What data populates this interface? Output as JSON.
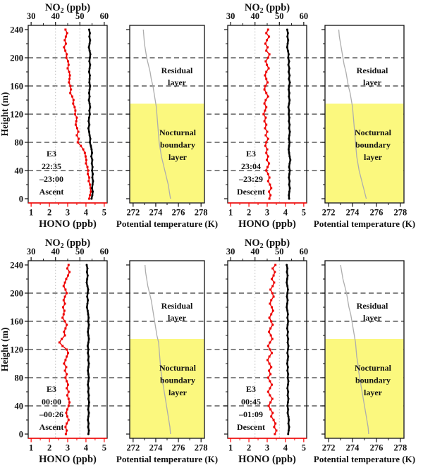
{
  "figure": {
    "description": "Vertical profiles of HONO and NO2 with potential temperature panels for flight E3"
  },
  "chart_data": {
    "type": "line",
    "height_axis": {
      "label": "Height (m)",
      "range": [
        0,
        240
      ],
      "ticks": [
        0,
        40,
        80,
        120,
        160,
        200,
        240
      ],
      "minor_step": 20,
      "dashed_gridlines": [
        40,
        80,
        120,
        160,
        200
      ]
    },
    "no2_axis": {
      "label_main": "NO",
      "label_sub": "2",
      "label_rest": " (ppb)",
      "range": [
        30,
        60
      ],
      "ticks": [
        30,
        40,
        50,
        60
      ],
      "minor_step": 5,
      "dotted_gridlines": [
        40,
        50
      ]
    },
    "hono_axis": {
      "label": "HONO (ppb)",
      "range": [
        1,
        5
      ],
      "ticks": [
        1,
        2,
        3,
        4,
        5
      ],
      "minor_step": 0.5
    },
    "theta_axis": {
      "label": "Potential temperature (K)",
      "range": [
        272,
        278
      ],
      "ticks": [
        272,
        274,
        276,
        278
      ],
      "minor_step": 1
    },
    "layers": {
      "residual_label": "Residual layer",
      "nocturnal_label": "Nocturnal boundary layer",
      "nbl_top_m": 135
    },
    "colors": {
      "hono": "#EE0000",
      "hono_axis": "#FF0000",
      "no2": "#000000",
      "theta": "#ADADAD",
      "dash": "#3A3A3A",
      "dotted_grid": "#BBBBBB",
      "nbl_fill": "#FBF87E",
      "text": "#111111"
    },
    "profile_heights": {
      "start": 240,
      "step": -5
    },
    "theta_heights": {
      "start": 240,
      "step": -10
    },
    "panels": [
      {
        "label_lines": [
          "E3",
          "22:35",
          "–23:00",
          "Ascent"
        ],
        "hono": [
          2.88,
          2.97,
          2.9,
          2.84,
          2.9,
          2.8,
          2.87,
          2.95,
          2.93,
          3.02,
          3.05,
          3.0,
          3.08,
          3.12,
          3.1,
          3.07,
          3.15,
          3.18,
          3.14,
          3.25,
          3.32,
          3.3,
          3.38,
          3.42,
          3.4,
          3.5,
          3.47,
          3.44,
          3.52,
          3.58,
          3.5,
          3.6,
          3.55,
          3.72,
          3.85,
          3.94,
          3.98,
          4.02,
          4.0,
          4.08,
          4.12,
          4.1,
          4.18,
          4.15,
          4.22,
          4.25,
          4.27,
          4.22,
          4.18
        ],
        "no2": [
          53.8,
          54.1,
          53.9,
          54.2,
          54.0,
          53.7,
          54.0,
          54.3,
          54.1,
          53.9,
          54.2,
          54.0,
          53.8,
          54.1,
          54.0,
          53.9,
          54.2,
          54.0,
          53.8,
          54.0,
          53.7,
          54.0,
          54.2,
          53.9,
          54.1,
          53.8,
          53.6,
          53.9,
          53.5,
          53.8,
          54.0,
          54.3,
          54.1,
          54.5,
          54.8,
          55.0,
          54.7,
          55.1,
          54.9,
          55.2,
          55.0,
          55.3,
          55.1,
          55.4,
          55.2,
          55.0,
          55.3,
          55.1,
          54.8
        ],
        "theta": [
          272.9,
          272.95,
          273.0,
          273.1,
          273.2,
          273.35,
          273.5,
          273.6,
          273.75,
          273.85,
          273.95,
          274.05,
          274.1,
          274.15,
          274.2,
          274.25,
          274.3,
          274.4,
          274.5,
          274.65,
          274.8,
          274.95,
          275.1,
          275.2,
          275.3
        ]
      },
      {
        "label_lines": [
          "E3",
          "23:04",
          "–23:29",
          "Descent"
        ],
        "hono": [
          3.05,
          2.95,
          3.1,
          2.98,
          2.9,
          3.02,
          2.95,
          3.12,
          3.05,
          2.92,
          2.98,
          3.08,
          2.95,
          2.88,
          2.95,
          3.02,
          2.9,
          2.85,
          2.95,
          3.05,
          2.92,
          2.85,
          2.95,
          2.88,
          2.8,
          2.92,
          2.85,
          2.95,
          2.88,
          3.0,
          2.92,
          3.05,
          2.95,
          2.9,
          3.0,
          2.95,
          3.05,
          2.98,
          3.1,
          3.02,
          2.95,
          3.05,
          3.12,
          3.05,
          3.15,
          3.22,
          3.1,
          3.18,
          3.12
        ],
        "no2": [
          53.2,
          53.5,
          53.3,
          53.6,
          53.4,
          53.2,
          53.5,
          53.8,
          53.6,
          54.0,
          53.7,
          54.1,
          53.8,
          54.2,
          53.9,
          54.3,
          54.0,
          53.8,
          54.1,
          53.9,
          54.2,
          54.0,
          53.7,
          54.0,
          53.8,
          54.1,
          53.9,
          54.2,
          54.0,
          54.3,
          54.1,
          53.9,
          54.2,
          54.0,
          53.8,
          54.0,
          54.2,
          54.5,
          54.2,
          54.0,
          54.3,
          54.1,
          53.9,
          54.2,
          54.0,
          54.3,
          54.1,
          53.9,
          54.0
        ],
        "theta": [
          272.85,
          272.9,
          273.0,
          273.1,
          273.2,
          273.3,
          273.45,
          273.55,
          273.65,
          273.8,
          273.9,
          274.0,
          274.05,
          274.1,
          274.15,
          274.2,
          274.25,
          274.3,
          274.35,
          274.45,
          274.55,
          274.7,
          274.85,
          275.0,
          275.15
        ]
      },
      {
        "label_lines": [
          "E3",
          "00:00",
          "–00:26",
          "Ascent"
        ],
        "hono": [
          3.05,
          2.98,
          3.1,
          3.02,
          2.92,
          2.85,
          2.78,
          2.88,
          2.95,
          2.85,
          2.78,
          2.85,
          2.75,
          2.82,
          2.78,
          2.72,
          2.85,
          2.95,
          2.88,
          2.8,
          2.85,
          2.68,
          2.55,
          2.72,
          2.95,
          3.02,
          2.95,
          2.88,
          2.8,
          2.92,
          2.85,
          2.95,
          2.88,
          2.95,
          3.02,
          2.95,
          3.05,
          2.98,
          3.05,
          3.1,
          3.05,
          2.98,
          2.92,
          2.98,
          3.05,
          2.95,
          2.88,
          2.95,
          2.9
        ],
        "no2": [
          52.8,
          53.1,
          52.9,
          53.2,
          53.0,
          52.8,
          53.1,
          53.4,
          53.2,
          53.0,
          53.3,
          53.1,
          52.9,
          53.2,
          53.4,
          53.6,
          53.4,
          53.7,
          53.5,
          53.3,
          53.5,
          53.7,
          53.5,
          53.2,
          53.5,
          53.3,
          53.6,
          53.4,
          53.7,
          53.5,
          53.3,
          53.5,
          53.7,
          53.5,
          53.3,
          53.6,
          53.4,
          53.7,
          53.5,
          53.8,
          53.6,
          53.4,
          53.7,
          53.5,
          53.3,
          53.6,
          53.4,
          53.7,
          53.5
        ],
        "theta": [
          273.05,
          273.1,
          273.2,
          273.3,
          273.45,
          273.6,
          273.7,
          273.8,
          273.9,
          274.0,
          274.1,
          274.25,
          274.3,
          274.35,
          274.4,
          274.45,
          274.55,
          274.65,
          274.75,
          274.85,
          274.95,
          275.05,
          275.15,
          275.25,
          275.3
        ]
      },
      {
        "label_lines": [
          "E3",
          "00:45",
          "–01:09",
          "Descent"
        ],
        "hono": [
          3.45,
          3.3,
          3.42,
          3.35,
          3.25,
          3.38,
          3.3,
          3.18,
          3.28,
          3.35,
          3.22,
          3.15,
          3.25,
          3.32,
          3.22,
          3.12,
          3.22,
          3.3,
          3.18,
          3.1,
          3.2,
          3.28,
          3.15,
          3.05,
          3.15,
          3.25,
          3.12,
          3.02,
          3.12,
          3.22,
          3.1,
          3.18,
          3.05,
          3.15,
          3.25,
          3.15,
          3.05,
          3.15,
          3.28,
          3.18,
          3.08,
          3.18,
          3.3,
          3.22,
          3.35,
          3.45,
          3.38,
          3.5,
          3.42
        ],
        "no2": [
          53.0,
          53.3,
          53.1,
          53.4,
          53.2,
          53.0,
          53.3,
          53.5,
          53.3,
          53.1,
          53.4,
          53.2,
          53.0,
          53.3,
          53.5,
          53.3,
          53.6,
          53.4,
          53.2,
          53.5,
          53.3,
          53.6,
          53.4,
          53.7,
          53.5,
          53.3,
          53.6,
          53.4,
          53.2,
          53.5,
          53.3,
          53.6,
          53.4,
          53.7,
          53.5,
          53.3,
          53.6,
          53.4,
          53.7,
          53.5,
          53.3,
          53.6,
          53.4,
          53.7,
          53.9,
          53.7,
          54.0,
          53.8,
          53.6
        ],
        "theta": [
          273.0,
          273.1,
          273.2,
          273.35,
          273.5,
          273.6,
          273.7,
          273.85,
          273.95,
          274.05,
          274.15,
          274.25,
          274.3,
          274.35,
          274.45,
          274.5,
          274.6,
          274.7,
          274.8,
          274.9,
          275.0,
          275.1,
          275.2,
          275.3,
          275.35
        ]
      }
    ]
  }
}
